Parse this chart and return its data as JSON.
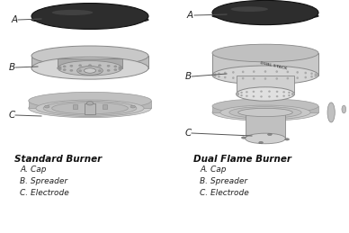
{
  "background_color": "#ffffff",
  "left_burner": {
    "title": "Standard Burner",
    "labels": [
      "A. Cap",
      "B. Spreader",
      "C. Electrode"
    ],
    "letters": [
      "A",
      "B",
      "C"
    ]
  },
  "right_burner": {
    "title": "Dual Flame Burner",
    "labels": [
      "A. Cap",
      "B. Spreader",
      "C. Electrode"
    ],
    "letters": [
      "A",
      "B",
      "C"
    ]
  },
  "figsize": [
    3.88,
    2.59
  ],
  "dpi": 100
}
